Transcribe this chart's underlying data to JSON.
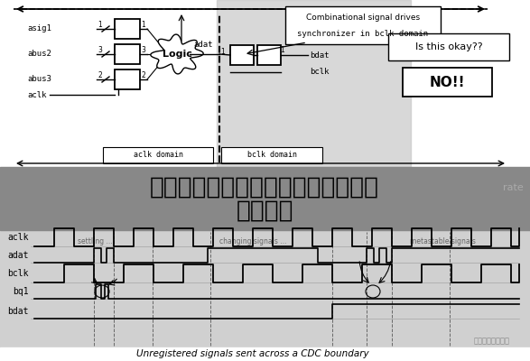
{
  "title_line1": "实时时钟芯片在线读写：技术解析与",
  "title_line2": "实际应用",
  "title_bg_color": "#888888",
  "bg_color": "#ffffff",
  "timing_bg_color": "#d8d8d8",
  "bottom_label": "Unregistered signals sent across a CDC boundary",
  "watermark": "芯片设计进阶之路",
  "fig_width": 5.87,
  "fig_height": 4.0,
  "dpi": 100,
  "cb_text1": "Combinational signal drives",
  "cb_text2": "synchronizer in bclk domain",
  "ok_text": "Is this okay??",
  "no_text": "NO!!",
  "aclk_domain": "aclk domain",
  "bclk_domain": "bclk domain",
  "sig_labels": [
    "aclk",
    "adat",
    "bclk",
    "bq1",
    "bdat"
  ]
}
